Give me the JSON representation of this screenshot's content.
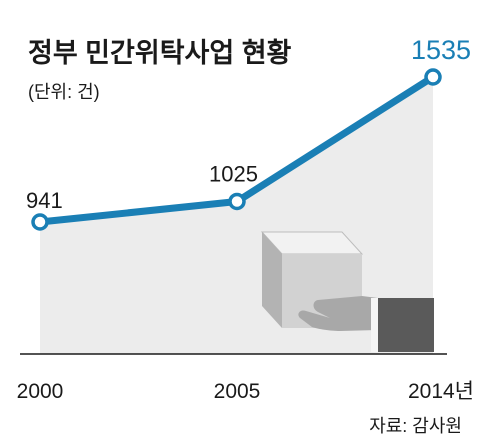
{
  "chart_data": {
    "type": "area",
    "title": "정부 민간위탁사업 현황",
    "unit_note": "(단위: 건)",
    "categories": [
      "2000",
      "2005",
      "2014년"
    ],
    "values": [
      941,
      1025,
      1535
    ],
    "data_labels": [
      "941",
      "1025",
      "1535"
    ],
    "source": "자료: 감사원",
    "highlight_last": true,
    "grid": false,
    "legend": "none"
  },
  "colors": {
    "line": "#1a7fb5",
    "area": "#ececec",
    "highlight_label": "#1a7fb5",
    "text": "#1a1a1a",
    "axis": "#1a1a1a"
  },
  "decoration": "hand-passing-box-icon"
}
